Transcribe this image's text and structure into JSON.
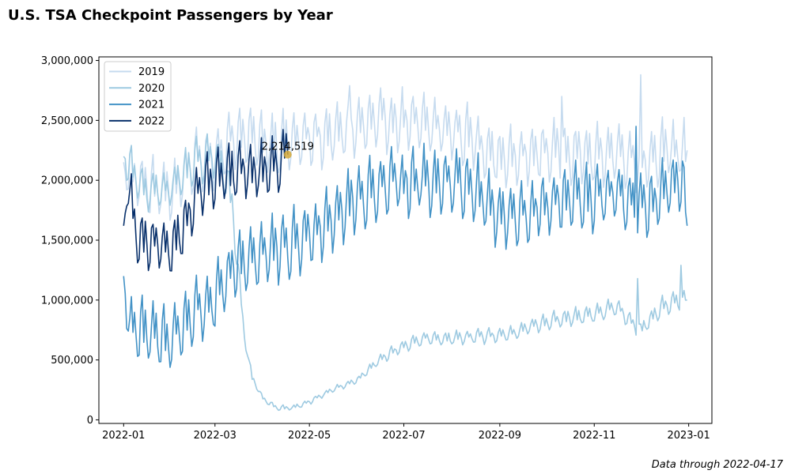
{
  "title": "U.S. TSA Checkpoint Passengers by Year",
  "footnote": "Data through 2022-04-17",
  "chart_data": {
    "type": "line",
    "title": "U.S. TSA Checkpoint Passengers by Year",
    "xlabel": "",
    "ylabel": "",
    "x_domain": [
      "2021-12-16",
      "2023-01-16"
    ],
    "x_ticks": [
      "2022-01",
      "2022-03",
      "2022-05",
      "2022-07",
      "2022-09",
      "2022-11",
      "2023-01"
    ],
    "ylim": [
      -30000,
      3030000
    ],
    "y_ticks": [
      "0",
      "500,000",
      "1,000,000",
      "1,500,000",
      "2,000,000",
      "2,500,000",
      "3,000,000"
    ],
    "legend_position": "top-left",
    "grid": false,
    "series": [
      {
        "name": "2019",
        "color": "#c6dbef",
        "anchors": [
          [
            "2022-01-01",
            2150000
          ],
          [
            "2022-01-15",
            1950000
          ],
          [
            "2022-02-01",
            1900000
          ],
          [
            "2022-02-15",
            2150000
          ],
          [
            "2022-03-01",
            2200000
          ],
          [
            "2022-03-15",
            2380000
          ],
          [
            "2022-04-01",
            2330000
          ],
          [
            "2022-04-15",
            2320000
          ],
          [
            "2022-05-01",
            2350000
          ],
          [
            "2022-05-15",
            2380000
          ],
          [
            "2022-06-01",
            2450000
          ],
          [
            "2022-06-15",
            2500000
          ],
          [
            "2022-07-01",
            2500000
          ],
          [
            "2022-07-15",
            2470000
          ],
          [
            "2022-08-01",
            2420000
          ],
          [
            "2022-08-15",
            2350000
          ],
          [
            "2022-09-01",
            2180000
          ],
          [
            "2022-09-15",
            2200000
          ],
          [
            "2022-10-01",
            2250000
          ],
          [
            "2022-10-15",
            2250000
          ],
          [
            "2022-11-01",
            2200000
          ],
          [
            "2022-11-15",
            2250000
          ],
          [
            "2022-12-01",
            2150000
          ],
          [
            "2022-12-15",
            2250000
          ],
          [
            "2022-12-31",
            2250000
          ]
        ],
        "weekly_amplitude": 230000,
        "spikes": [
          [
            "2022-12-01",
            2880000
          ],
          [
            "2022-05-27",
            2790000
          ],
          [
            "2022-07-07",
            2700000
          ],
          [
            "2022-10-11",
            2700000
          ]
        ]
      },
      {
        "name": "2020",
        "color": "#9ecae1",
        "anchors": [
          [
            "2022-01-01",
            2200000
          ],
          [
            "2022-01-15",
            1900000
          ],
          [
            "2022-02-01",
            1950000
          ],
          [
            "2022-02-15",
            2150000
          ],
          [
            "2022-03-01",
            2200000
          ],
          [
            "2022-03-08",
            2050000
          ],
          [
            "2022-03-12",
            1800000
          ],
          [
            "2022-03-16",
            1250000
          ],
          [
            "2022-03-20",
            700000
          ],
          [
            "2022-03-25",
            350000
          ],
          [
            "2022-04-01",
            180000
          ],
          [
            "2022-04-10",
            100000
          ],
          [
            "2022-04-20",
            100000
          ],
          [
            "2022-05-01",
            150000
          ],
          [
            "2022-05-15",
            250000
          ],
          [
            "2022-06-01",
            330000
          ],
          [
            "2022-06-15",
            500000
          ],
          [
            "2022-07-01",
            620000
          ],
          [
            "2022-07-15",
            680000
          ],
          [
            "2022-08-01",
            680000
          ],
          [
            "2022-08-15",
            700000
          ],
          [
            "2022-09-01",
            700000
          ],
          [
            "2022-09-15",
            750000
          ],
          [
            "2022-10-01",
            820000
          ],
          [
            "2022-10-15",
            850000
          ],
          [
            "2022-11-01",
            880000
          ],
          [
            "2022-11-15",
            950000
          ],
          [
            "2022-12-01",
            750000
          ],
          [
            "2022-12-15",
            950000
          ],
          [
            "2022-12-31",
            1000000
          ]
        ],
        "weekly_amplitude": 180000,
        "spikes": [
          [
            "2022-11-29",
            1180000
          ],
          [
            "2022-12-27",
            1290000
          ]
        ]
      },
      {
        "name": "2021",
        "color": "#4292c6",
        "anchors": [
          [
            "2022-01-01",
            1200000
          ],
          [
            "2022-01-05",
            800000
          ],
          [
            "2022-01-15",
            720000
          ],
          [
            "2022-02-01",
            680000
          ],
          [
            "2022-02-15",
            900000
          ],
          [
            "2022-03-01",
            1000000
          ],
          [
            "2022-03-15",
            1300000
          ],
          [
            "2022-04-01",
            1400000
          ],
          [
            "2022-04-15",
            1430000
          ],
          [
            "2022-05-01",
            1550000
          ],
          [
            "2022-05-15",
            1700000
          ],
          [
            "2022-06-01",
            1850000
          ],
          [
            "2022-06-15",
            1950000
          ],
          [
            "2022-07-01",
            2000000
          ],
          [
            "2022-07-15",
            2000000
          ],
          [
            "2022-08-01",
            2000000
          ],
          [
            "2022-08-15",
            1950000
          ],
          [
            "2022-09-01",
            1700000
          ],
          [
            "2022-09-15",
            1700000
          ],
          [
            "2022-10-01",
            1800000
          ],
          [
            "2022-10-15",
            1850000
          ],
          [
            "2022-11-01",
            1850000
          ],
          [
            "2022-11-15",
            1900000
          ],
          [
            "2022-12-01",
            1750000
          ],
          [
            "2022-12-15",
            1900000
          ],
          [
            "2022-12-28",
            2000000
          ],
          [
            "2022-12-31",
            1620000
          ]
        ],
        "weekly_amplitude": 260000,
        "spikes": [
          [
            "2022-11-28",
            2450000
          ]
        ]
      },
      {
        "name": "2022",
        "color": "#08306b",
        "anchors": [
          [
            "2022-01-01",
            1620000
          ],
          [
            "2022-01-03",
            2000000
          ],
          [
            "2022-01-10",
            1500000
          ],
          [
            "2022-01-20",
            1450000
          ],
          [
            "2022-02-01",
            1450000
          ],
          [
            "2022-02-10",
            1650000
          ],
          [
            "2022-02-20",
            1950000
          ],
          [
            "2022-03-01",
            2000000
          ],
          [
            "2022-03-15",
            2080000
          ],
          [
            "2022-04-01",
            2080000
          ],
          [
            "2022-04-17",
            2214519
          ]
        ],
        "weekly_amplitude": 230000,
        "spikes": []
      }
    ],
    "annotation": {
      "date": "2022-04-17",
      "value": 2214519,
      "label": "2,214,519",
      "marker_color": "#d4a838"
    }
  }
}
